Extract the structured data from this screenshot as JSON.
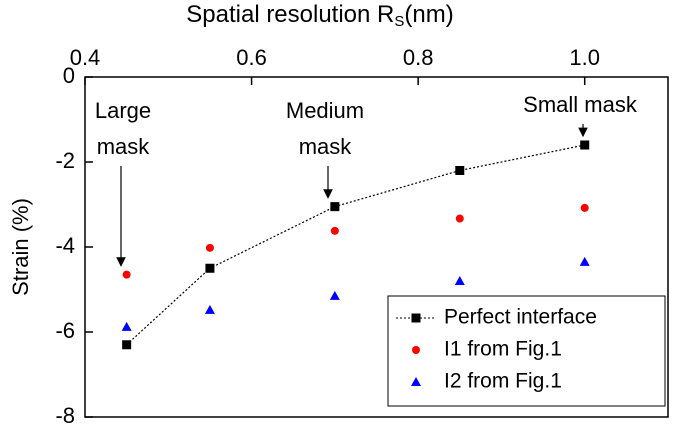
{
  "chart_data": {
    "type": "scatter",
    "x_label": "Spatial resolution R",
    "x_label_sub": "S",
    "x_label_end": "(nm)",
    "y_label": "Strain (%)",
    "x": [
      0.45,
      0.55,
      0.7,
      0.85,
      1.0
    ],
    "series": [
      {
        "name": "Perfect interface",
        "color": "#000000",
        "marker": "square",
        "line_style": "dotted",
        "values": [
          -6.3,
          -4.5,
          -3.05,
          -2.2,
          -1.6
        ]
      },
      {
        "name": "I1 from Fig.1",
        "color": "#ff0000",
        "marker": "circle",
        "values": [
          -4.65,
          -4.02,
          -3.62,
          -3.33,
          -3.08
        ]
      },
      {
        "name": "I2 from Fig.1",
        "color": "#0000ff",
        "marker": "triangle",
        "values": [
          -5.88,
          -5.48,
          -5.15,
          -4.8,
          -4.35
        ]
      }
    ],
    "xlim": [
      0.4,
      1.1
    ],
    "xticks": [
      0.4,
      0.6,
      0.8,
      {
        "value": 1,
        "label": "1.0"
      }
    ],
    "ylim": [
      -8,
      0
    ],
    "yticks": [
      0,
      -2,
      -4,
      -6,
      -8
    ],
    "legend": "lower right",
    "annotations": [
      [
        "Large",
        "mask"
      ],
      [
        "Medium",
        "mask"
      ],
      [
        "Small mask"
      ]
    ]
  }
}
